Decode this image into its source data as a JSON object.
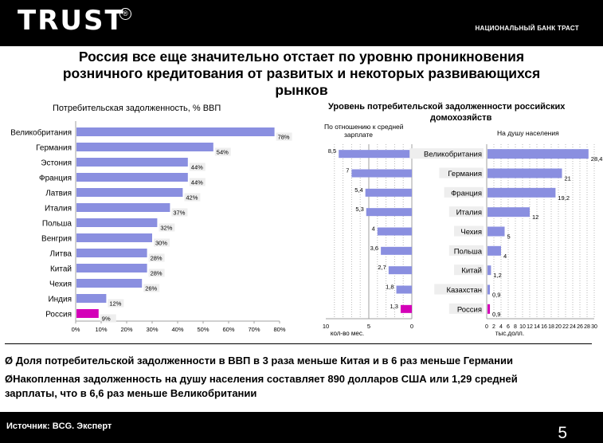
{
  "header": {
    "logo_text": "TRUST",
    "logo_reg": "®",
    "bank_name": "НАЦИОНАЛЬНЫЙ БАНК ТРАСТ"
  },
  "title": {
    "line1": "Россия все еще значительно отстает по уровню проникновения",
    "line2": "розничного кредитования от развитых и некоторых развивающихся",
    "line3": "рынков"
  },
  "subtitles": {
    "left": "Потребительская задолженность, % ВВП",
    "right_line1": "Уровень потребительской задолженности российских",
    "right_line2": "домохозяйств",
    "middle_note_line1": "По отношению к средней",
    "middle_note_line2": "зарплате",
    "right_note": "На душу населения"
  },
  "colors": {
    "bar": "#8a8fe0",
    "highlight": "#d400b8",
    "axis": "#a0a0a0",
    "grid": "#b8b8b8",
    "label_bg": "#eeeeee"
  },
  "chart_data": [
    {
      "type": "bar",
      "orientation": "horizontal",
      "title": "Потребительская задолженность, % ВВП",
      "categories": [
        "Великобритания",
        "Германия",
        "Эстония",
        "Франция",
        "Латвия",
        "Италия",
        "Польша",
        "Венгрия",
        "Литва",
        "Китай",
        "Чехия",
        "Индия",
        "Россия"
      ],
      "values": [
        78,
        54,
        44,
        44,
        42,
        37,
        32,
        30,
        28,
        28,
        26,
        12,
        9
      ],
      "value_labels": [
        "78%",
        "54%",
        "44%",
        "44%",
        "42%",
        "37%",
        "32%",
        "30%",
        "28%",
        "28%",
        "26%",
        "12%",
        "9%"
      ],
      "highlight": "Россия",
      "xlim": [
        0,
        80
      ],
      "ticks": [
        "0%",
        "10%",
        "20%",
        "30%",
        "40%",
        "50%",
        "60%",
        "70%",
        "80%"
      ],
      "grid": false
    },
    {
      "type": "bar",
      "orientation": "horizontal",
      "direction": "right-to-left",
      "title": "По отношению к средней зарплате",
      "xlabel": "кол-во мес.",
      "values": [
        8.5,
        7,
        5.4,
        5.3,
        4,
        3.6,
        2.7,
        1.8,
        1.3
      ],
      "value_labels": [
        "8,5",
        "7",
        "5,4",
        "5,3",
        "4",
        "3,6",
        "2,7",
        "1,8",
        "1,3"
      ],
      "highlight_index": 8,
      "xlim": [
        0,
        10
      ],
      "ticks": [
        "10",
        "5",
        "0"
      ],
      "grid": true
    },
    {
      "type": "bar",
      "orientation": "horizontal",
      "title": "На душу населения",
      "xlabel": "тыс.долл.",
      "categories": [
        "Великобритания",
        "Германия",
        "Франция",
        "Италия",
        "Чехия",
        "Польша",
        "Китай",
        "Казахстан",
        "Россия"
      ],
      "values": [
        28.4,
        21,
        19.2,
        12,
        5,
        4,
        1.2,
        0.9,
        0.9
      ],
      "value_labels": [
        "28,4",
        "21",
        "19,2",
        "12",
        "5",
        "4",
        "1,2",
        "0,9",
        "0,9"
      ],
      "highlight": "Россия",
      "xlim": [
        0,
        30
      ],
      "ticks": [
        "0",
        "2",
        "4",
        "6",
        "8",
        "10",
        "12",
        "14",
        "16",
        "18",
        "20",
        "22",
        "24",
        "26",
        "28",
        "30"
      ],
      "grid": true
    }
  ],
  "bullets": {
    "b1": "Ø  Доля потребительской задолженности в ВВП в 3 раза меньше Китая и в 6 раз меньше Германии",
    "b2_line1": "ØНакопленная задолженность на душу населения составляет 890 долларов США или 1,29 средней",
    "b2_line2": "зарплаты, что в 6,6 раз меньше Великобритании"
  },
  "footer": {
    "source": "Источник: BCG. Эксперт",
    "page_number": "5"
  }
}
